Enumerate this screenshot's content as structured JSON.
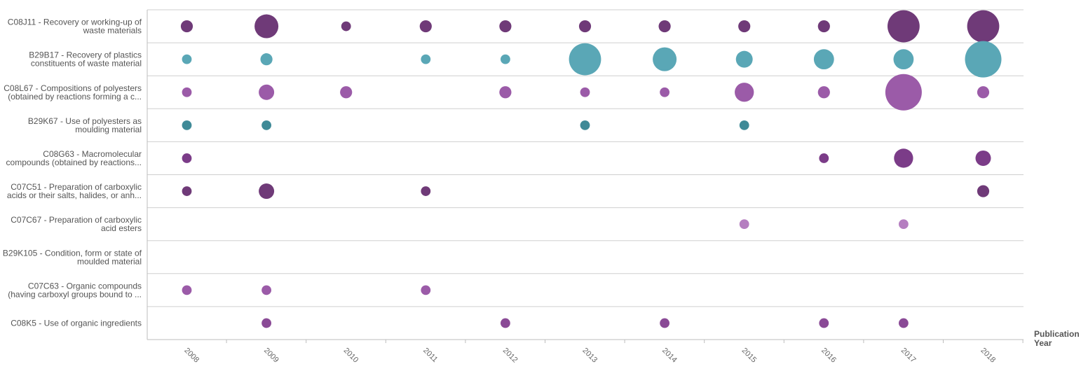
{
  "chart_data": {
    "type": "bubble",
    "title": "",
    "xlabel": "Publication Year",
    "x": [
      "2008",
      "2009",
      "2010",
      "2011",
      "2012",
      "2013",
      "2014",
      "2015",
      "2016",
      "2017",
      "2018"
    ],
    "series": [
      {
        "label_lines": [
          "C08J11 - Recovery or working-up of",
          "waste materials"
        ],
        "color": "#6f3a78",
        "values": [
          2,
          12,
          1,
          2,
          2,
          2,
          2,
          2,
          2,
          24,
          24
        ]
      },
      {
        "label_lines": [
          "B29B17 - Recovery of plastics",
          "constituents of waste material"
        ],
        "color": "#5aa7b6",
        "values": [
          1,
          2,
          0,
          1,
          1,
          24,
          12,
          5,
          8,
          8,
          32
        ]
      },
      {
        "label_lines": [
          "C08L67 - Compositions of polyesters",
          "(obtained by reactions forming a c..."
        ],
        "color": "#9b5ba8",
        "values": [
          1,
          4,
          2,
          0,
          2,
          1,
          1,
          7,
          2,
          32,
          2
        ]
      },
      {
        "label_lines": [
          "B29K67 - Use of polyesters as",
          "moulding material"
        ],
        "color": "#3f8a97",
        "values": [
          1,
          1,
          0,
          0,
          0,
          1,
          0,
          1,
          0,
          0,
          0
        ]
      },
      {
        "label_lines": [
          "C08G63 - Macromolecular",
          "compounds (obtained by reactions..."
        ],
        "color": "#7b3c88",
        "values": [
          1,
          0,
          0,
          0,
          0,
          0,
          0,
          0,
          1,
          7,
          4
        ]
      },
      {
        "label_lines": [
          "C07C51 - Preparation of carboxylic",
          "acids or their salts, halides, or anh..."
        ],
        "color": "#6f3a78",
        "values": [
          1,
          4,
          0,
          1,
          0,
          0,
          0,
          0,
          0,
          0,
          2
        ]
      },
      {
        "label_lines": [
          "C07C67 - Preparation of carboxylic",
          "acid esters"
        ],
        "color": "#b57ec0",
        "values": [
          0,
          0,
          0,
          0,
          0,
          0,
          0,
          1,
          0,
          1,
          0
        ]
      },
      {
        "label_lines": [
          "B29K105 - Condition, form or state of",
          "moulded material"
        ],
        "color": "#6f3a78",
        "values": [
          0,
          0,
          0,
          0,
          0,
          0,
          0,
          0,
          0,
          0,
          0
        ]
      },
      {
        "label_lines": [
          "C07C63 - Organic compounds",
          "(having carboxyl groups bound to ..."
        ],
        "color": "#9b5ba8",
        "values": [
          1,
          1,
          0,
          1,
          0,
          0,
          0,
          0,
          0,
          0,
          0
        ]
      },
      {
        "label_lines": [
          "C08K5 - Use of organic ingredients"
        ],
        "color": "#8a4a96",
        "values": [
          0,
          1,
          0,
          0,
          1,
          0,
          1,
          0,
          1,
          1,
          0
        ]
      }
    ],
    "grid": true,
    "legend": "none"
  }
}
